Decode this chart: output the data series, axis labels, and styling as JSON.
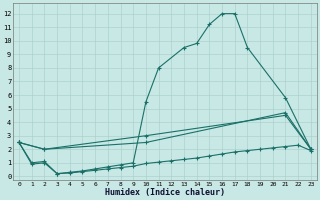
{
  "xlabel": "Humidex (Indice chaleur)",
  "background_color": "#c8e8e5",
  "grid_color": "#a8ccc9",
  "line_color": "#1a7068",
  "ylim": [
    -0.3,
    12.8
  ],
  "xlim": [
    -0.5,
    23.5
  ],
  "yticks": [
    0,
    1,
    2,
    3,
    4,
    5,
    6,
    7,
    8,
    9,
    10,
    11,
    12
  ],
  "xticks": [
    0,
    1,
    2,
    3,
    4,
    5,
    6,
    7,
    8,
    9,
    10,
    11,
    12,
    13,
    14,
    15,
    16,
    17,
    18,
    19,
    20,
    21,
    22,
    23
  ],
  "series": [
    {
      "x": [
        0,
        1,
        2,
        3,
        4,
        5,
        6,
        7,
        8,
        9,
        10,
        11,
        13,
        14,
        15,
        16,
        17,
        18,
        21,
        23
      ],
      "y": [
        2.5,
        1.0,
        1.1,
        0.2,
        0.3,
        0.4,
        0.55,
        0.7,
        0.85,
        1.0,
        5.5,
        8.0,
        9.5,
        9.8,
        11.2,
        12.0,
        12.0,
        9.5,
        5.8,
        2.0
      ]
    },
    {
      "x": [
        0,
        2,
        10,
        21,
        23
      ],
      "y": [
        2.5,
        2.0,
        3.0,
        4.5,
        2.0
      ]
    },
    {
      "x": [
        0,
        2,
        10,
        21,
        23
      ],
      "y": [
        2.5,
        2.0,
        2.5,
        4.7,
        2.0
      ]
    },
    {
      "x": [
        0,
        1,
        2,
        3,
        4,
        5,
        6,
        7,
        8,
        9,
        10,
        11,
        12,
        13,
        14,
        15,
        16,
        17,
        18,
        19,
        20,
        21,
        22,
        23
      ],
      "y": [
        2.5,
        0.9,
        1.0,
        0.2,
        0.25,
        0.35,
        0.45,
        0.55,
        0.65,
        0.75,
        0.95,
        1.05,
        1.15,
        1.25,
        1.35,
        1.5,
        1.65,
        1.8,
        1.9,
        2.0,
        2.1,
        2.2,
        2.3,
        1.9
      ]
    }
  ]
}
